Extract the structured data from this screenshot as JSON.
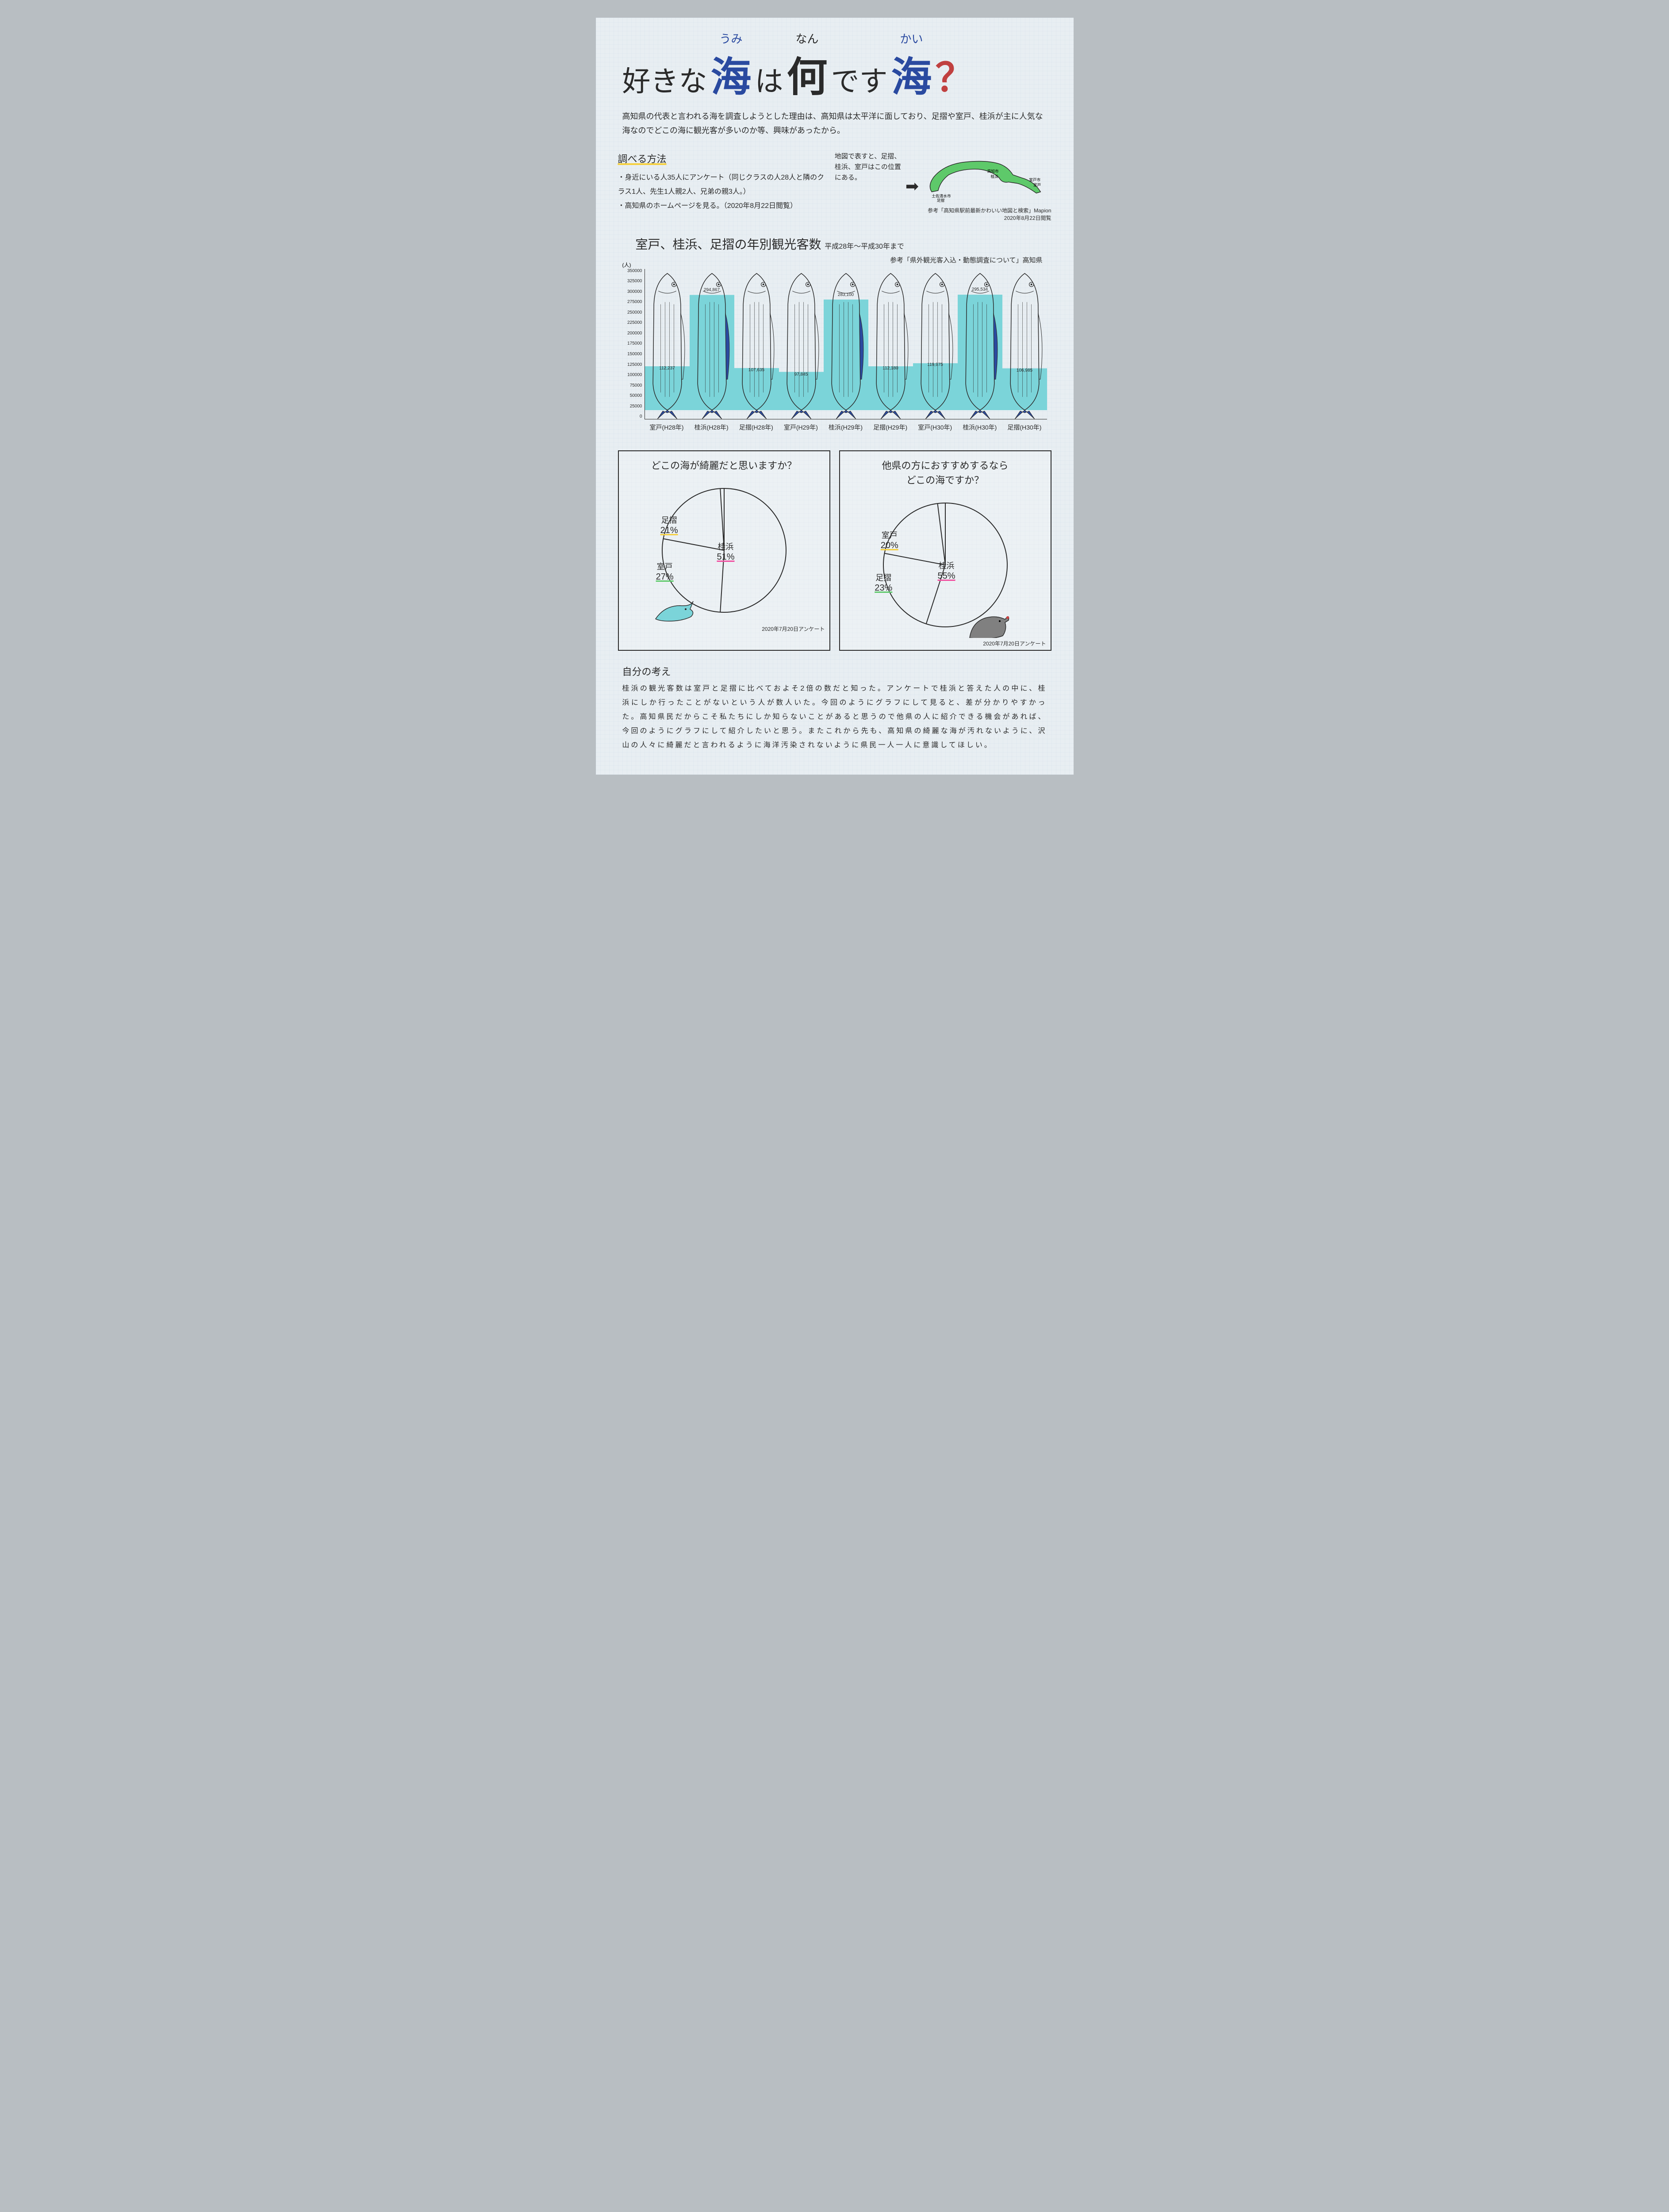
{
  "title": {
    "p1": "好きな",
    "sea1": "海",
    "ruby1": "うみ",
    "p2": "は",
    "what": "何",
    "ruby2": "なん",
    "p3": "です",
    "sea2": "海",
    "ruby3": "かい",
    "q": "？"
  },
  "intro": "高知県の代表と言われる海を調査しようとした理由は、高知県は太平洋に面しており、足摺や室戸、桂浜が主に人気な海なのでどこの海に観光客が多いのか等、興味があったから。",
  "method": {
    "title": "調べる方法",
    "items": [
      "身近にいる人35人にアンケート（同じクラスの人28人と隣のクラス1人、先生1人親2人、兄弟の親3人。）",
      "高知県のホームページを見る。（2020年8月22日閲覧）"
    ]
  },
  "map": {
    "note": "地図で表すと、足摺、桂浜、室戸はこの位置にある。",
    "labels": {
      "kochi": "高知市",
      "katsurahama": "桂浜",
      "tosashimizu": "土佐清水市",
      "ashizuri": "足摺",
      "murotoshi": "室戸市",
      "muroto": "室戸"
    },
    "ref": "参考「高知県駅前最新かわいい地図と検索」Mapion 2020年8月22日閲覧",
    "land_color": "#5ec96a",
    "stroke": "#2a2a2a"
  },
  "fish_chart": {
    "title": "室戸、桂浜、足摺の年別観光客数",
    "subtitle": "平成28年～平成30年まで",
    "ref": "参考「県外観光客入込・動態調査について」高知県",
    "y_max": 350000,
    "y_tick_step": 25000,
    "y_unit": "(人)",
    "bars": [
      {
        "label": "室戸(H28年)",
        "value": 112237,
        "is_katsurahama": false
      },
      {
        "label": "桂浜(H28年)",
        "value": 294867,
        "is_katsurahama": true
      },
      {
        "label": "足摺(H28年)",
        "value": 107635,
        "is_katsurahama": false
      },
      {
        "label": "室戸(H29年)",
        "value": 97845,
        "is_katsurahama": false
      },
      {
        "label": "桂浜(H29年)",
        "value": 283100,
        "is_katsurahama": true
      },
      {
        "label": "足摺(H29年)",
        "value": 112180,
        "is_katsurahama": false
      },
      {
        "label": "室戸(H30年)",
        "value": 119975,
        "is_katsurahama": false
      },
      {
        "label": "桂浜(H30年)",
        "value": 295534,
        "is_katsurahama": true
      },
      {
        "label": "足摺(H30年)",
        "value": 106985,
        "is_katsurahama": false
      }
    ],
    "fish_outline": "#2a2a2a",
    "fill_color": "#7bd4d9",
    "katsurahama_fin": "#2a4aa0",
    "tail_color": "#2a4aa0"
  },
  "pies": {
    "left": {
      "question": "どこの海が綺麗だと思いますか？",
      "date": "2020年7月20日アンケート",
      "slices": [
        {
          "label": "桂浜",
          "pct": 51,
          "underline": "#f050a0"
        },
        {
          "label": "室戸",
          "pct": 27,
          "underline": "#5ec96a"
        },
        {
          "label": "足摺",
          "pct": 21,
          "underline": "#f5d040"
        }
      ]
    },
    "right": {
      "question_l1": "他県の方におすすめするなら",
      "question_l2": "どこの海ですか？",
      "date": "2020年7月20日アンケート",
      "slices": [
        {
          "label": "桂浜",
          "pct": 55,
          "underline": "#f050a0"
        },
        {
          "label": "足摺",
          "pct": 23,
          "underline": "#5ec96a"
        },
        {
          "label": "室戸",
          "pct": 20,
          "underline": "#f5d040"
        }
      ]
    },
    "stroke": "#2a2a2a"
  },
  "dolphin_color": "#7bd4d9",
  "seal_color": "#808080",
  "thoughts": {
    "title": "自分の考え",
    "text": "桂浜の観光客数は室戸と足摺に比べておよそ2倍の数だと知った。アンケートで桂浜と答えた人の中に、桂浜にしか行ったことがないという人が数人いた。今回のようにグラフにして見ると、差が分かりやすかった。高知県民だからこそ私たちにしか知らないことがあると思うので他県の人に紹介できる機会があれば、今回のようにグラフにして紹介したいと思う。またこれから先も、高知県の綺麗な海が汚れないように、沢山の人々に綺麗だと言われるように海洋汚染されないように県民一人一人に意識してほしい。"
  }
}
